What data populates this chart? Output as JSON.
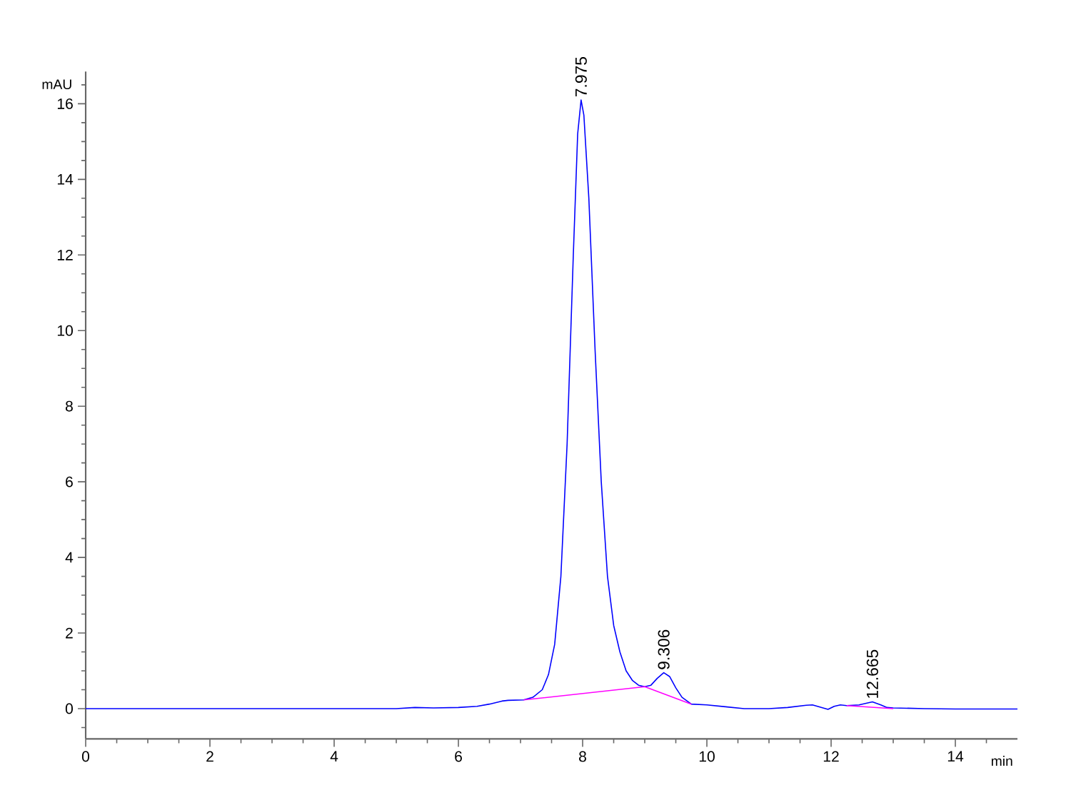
{
  "chart_data": {
    "type": "line",
    "xlabel": "min",
    "ylabel": "mAU",
    "xlim": [
      0,
      15
    ],
    "ylim": [
      -0.8,
      16.85
    ],
    "xticks": [
      0,
      {
        "value": 0.5,
        "label": null
      },
      {
        "value": 1,
        "label": null
      },
      {
        "value": 1.5,
        "label": null
      },
      2,
      {
        "value": 2.5,
        "label": null
      },
      {
        "value": 3,
        "label": null
      },
      {
        "value": 3.5,
        "label": null
      },
      4,
      {
        "value": 4.5,
        "label": null
      },
      {
        "value": 5,
        "label": null
      },
      {
        "value": 5.5,
        "label": null
      },
      6,
      {
        "value": 6.5,
        "label": null
      },
      {
        "value": 7,
        "label": null
      },
      {
        "value": 7.5,
        "label": null
      },
      8,
      {
        "value": 8.5,
        "label": null
      },
      {
        "value": 9,
        "label": null
      },
      {
        "value": 9.5,
        "label": null
      },
      10,
      {
        "value": 10.5,
        "label": null
      },
      {
        "value": 11,
        "label": null
      },
      {
        "value": 11.5,
        "label": null
      },
      12,
      {
        "value": 12.5,
        "label": null
      },
      {
        "value": 13,
        "label": null
      },
      {
        "value": 13.5,
        "label": null
      },
      14,
      {
        "value": 14.5,
        "label": null
      }
    ],
    "yticks": [
      {
        "value": -0.5,
        "label": null
      },
      0,
      {
        "value": 0.5,
        "label": null
      },
      {
        "value": 1,
        "label": null
      },
      {
        "value": 1.5,
        "label": null
      },
      2,
      {
        "value": 2.5,
        "label": null
      },
      {
        "value": 3,
        "label": null
      },
      {
        "value": 3.5,
        "label": null
      },
      4,
      {
        "value": 4.5,
        "label": null
      },
      {
        "value": 5,
        "label": null
      },
      {
        "value": 5.5,
        "label": null
      },
      6,
      {
        "value": 6.5,
        "label": null
      },
      {
        "value": 7,
        "label": null
      },
      {
        "value": 7.5,
        "label": null
      },
      8,
      {
        "value": 8.5,
        "label": null
      },
      {
        "value": 9,
        "label": null
      },
      {
        "value": 9.5,
        "label": null
      },
      10,
      {
        "value": 10.5,
        "label": null
      },
      {
        "value": 11,
        "label": null
      },
      {
        "value": 11.5,
        "label": null
      },
      12,
      {
        "value": 12.5,
        "label": null
      },
      {
        "value": 13,
        "label": null
      },
      {
        "value": 13.5,
        "label": null
      },
      14,
      {
        "value": 14.5,
        "label": null
      },
      {
        "value": 15,
        "label": null
      },
      {
        "value": 15.5,
        "label": null
      },
      16,
      {
        "value": 16.5,
        "label": null
      }
    ],
    "series": [
      {
        "color": "#0000ff",
        "x": [
          0,
          1,
          2,
          3,
          4,
          5,
          5.3,
          5.6,
          6.0,
          6.3,
          6.5,
          6.7,
          6.8,
          7.05,
          7.2,
          7.35,
          7.45,
          7.55,
          7.65,
          7.75,
          7.85,
          7.92,
          7.975,
          8.02,
          8.1,
          8.2,
          8.3,
          8.4,
          8.5,
          8.6,
          8.7,
          8.8,
          8.9,
          9.0,
          9.1,
          9.2,
          9.306,
          9.4,
          9.5,
          9.6,
          9.75,
          10.0,
          10.3,
          10.6,
          11.0,
          11.3,
          11.6,
          11.7,
          11.85,
          11.95,
          12.05,
          12.15,
          12.25,
          12.45,
          12.665,
          12.8,
          12.9,
          13.0,
          13.5,
          14.0,
          15.0
        ],
        "values": [
          0,
          0,
          0,
          0,
          0,
          0,
          0.03,
          0.02,
          0.03,
          0.06,
          0.12,
          0.2,
          0.22,
          0.23,
          0.3,
          0.5,
          0.9,
          1.7,
          3.5,
          7,
          12,
          15.2,
          16.1,
          15.7,
          13.5,
          9.5,
          6.0,
          3.5,
          2.2,
          1.5,
          1.0,
          0.75,
          0.62,
          0.58,
          0.62,
          0.8,
          0.95,
          0.85,
          0.55,
          0.3,
          0.12,
          0.1,
          0.05,
          0.0,
          0.0,
          0.03,
          0.09,
          0.1,
          0.03,
          -0.02,
          0.06,
          0.1,
          0.08,
          0.1,
          0.18,
          0.1,
          0.03,
          0.02,
          0.0,
          -0.01,
          -0.01
        ]
      },
      {
        "color": "#ff00ff",
        "x": [
          7.05,
          9.0,
          9.75
        ],
        "values": [
          0.23,
          0.58,
          0.12
        ]
      },
      {
        "color": "#ff00ff",
        "x": [
          12.25,
          13.0
        ],
        "values": [
          0.08,
          0.0
        ]
      }
    ],
    "annotations": [
      {
        "text": "7.975",
        "x": 7.975,
        "y": 16.1
      },
      {
        "text": "9.306",
        "x": 9.306,
        "y": 0.95
      },
      {
        "text": "12.665",
        "x": 12.665,
        "y": 0.18
      }
    ]
  }
}
